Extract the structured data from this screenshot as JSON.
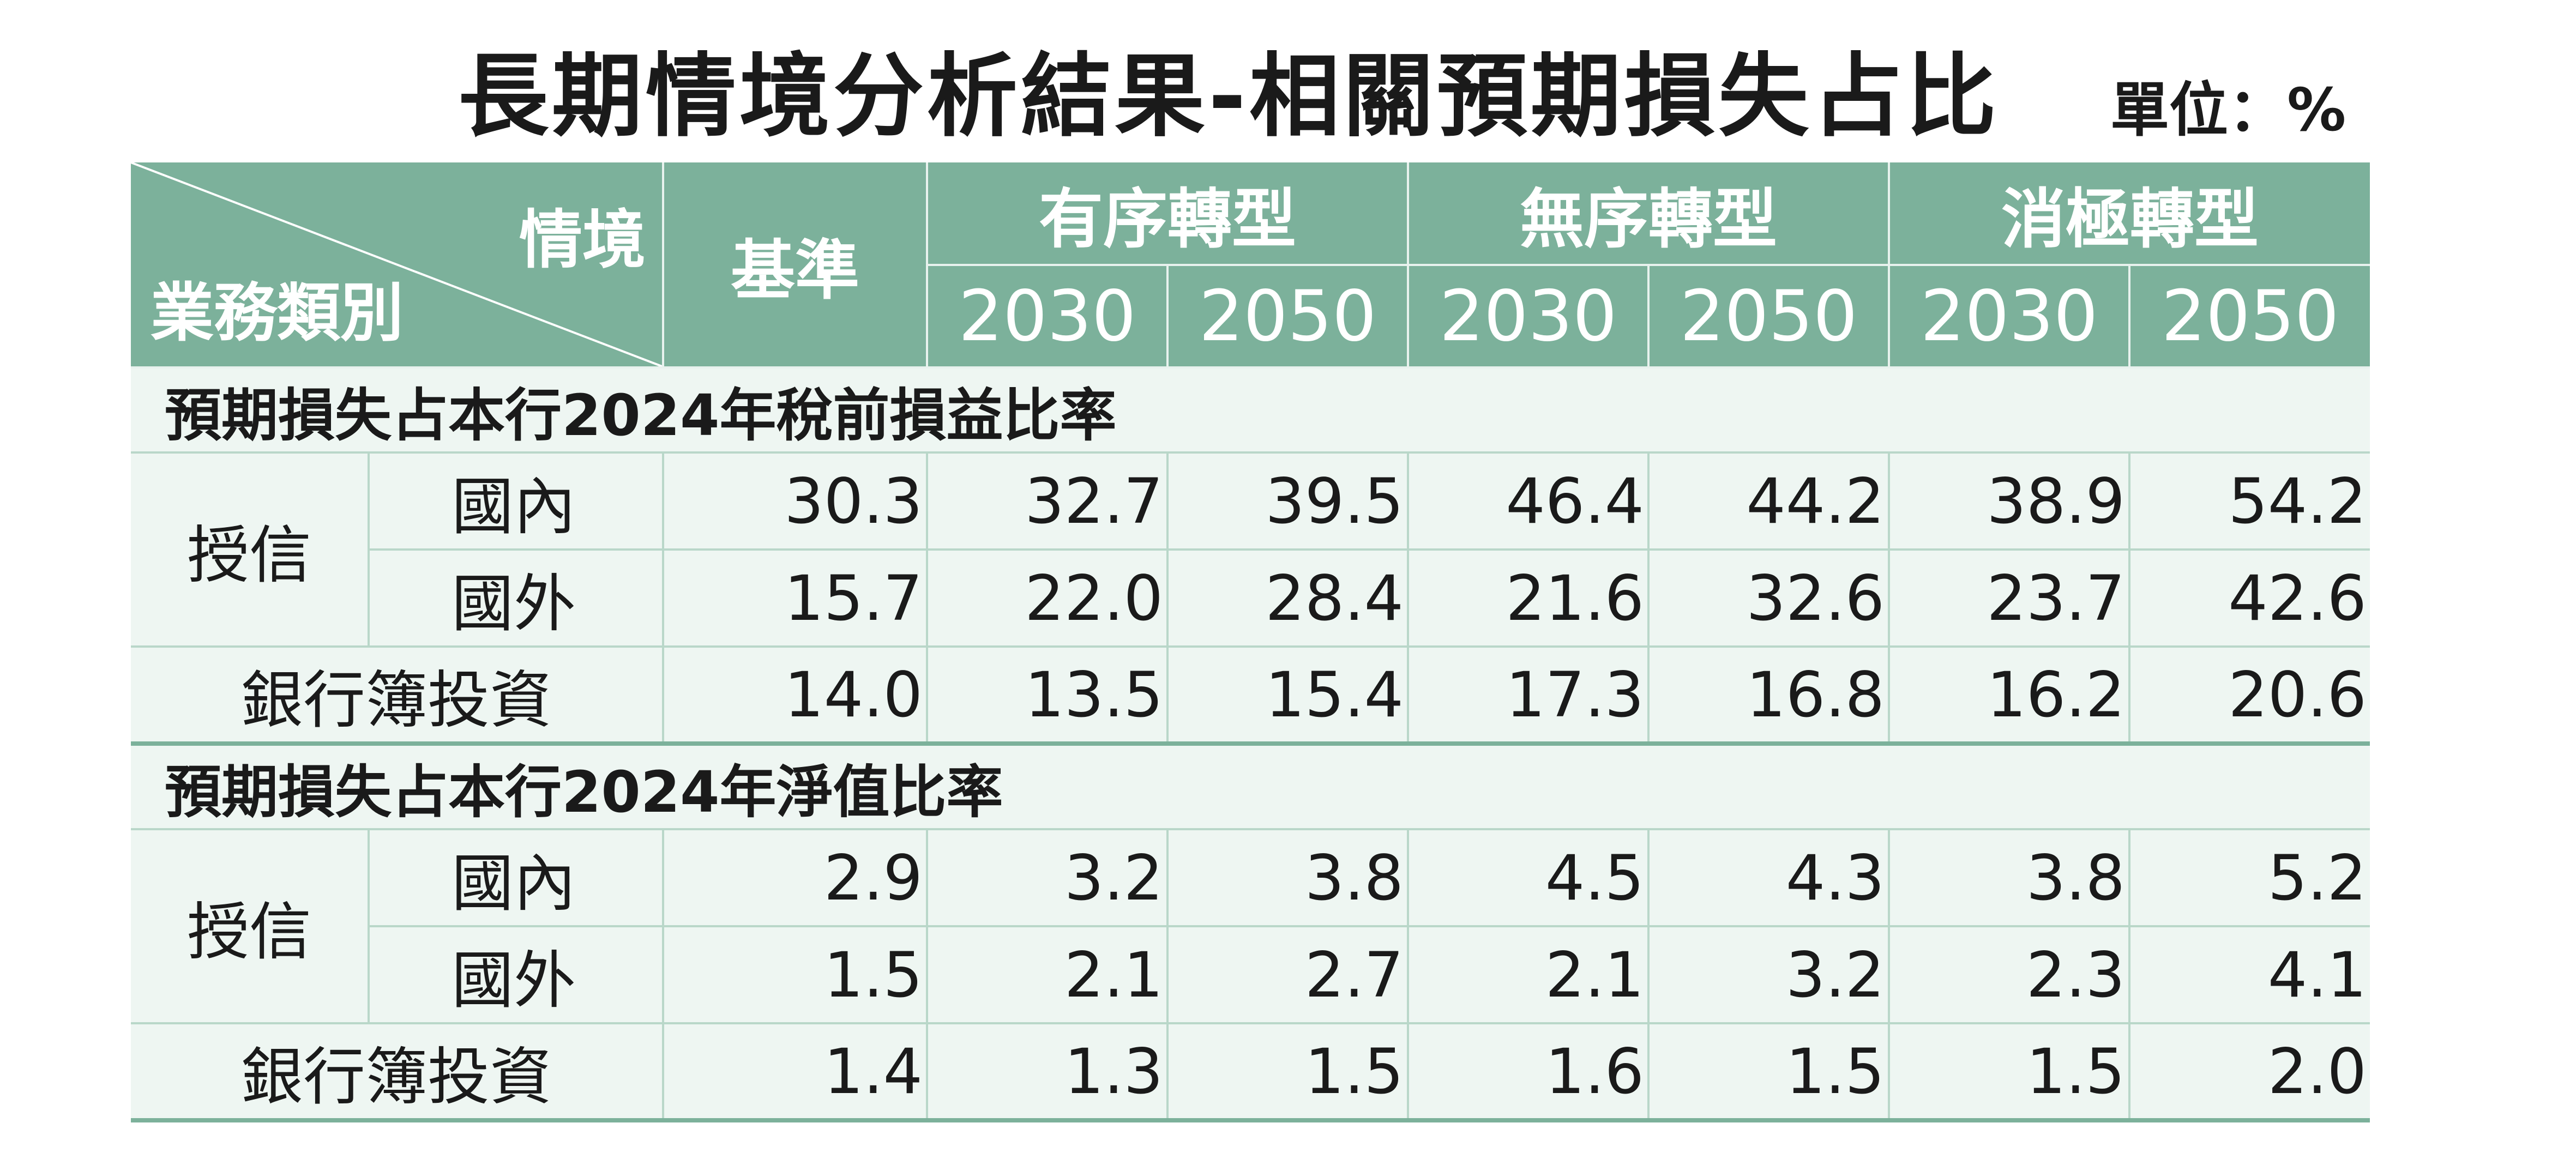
{
  "title": "長期情境分析結果-相關預期損失占比",
  "unit": "單位：%",
  "header": {
    "scenario_label": "情境",
    "business_label": "業務類別",
    "baseline": "基準",
    "scenarios": [
      "有序轉型",
      "無序轉型",
      "消極轉型"
    ],
    "years": [
      "2030",
      "2050",
      "2030",
      "2050",
      "2030",
      "2050"
    ]
  },
  "sections": [
    {
      "title": "預期損失占本行2024年稅前損益比率",
      "credit_label": "授信",
      "rows": [
        {
          "label": "國內",
          "values": [
            "30.3",
            "32.7",
            "39.5",
            "46.4",
            "44.2",
            "38.9",
            "54.2"
          ]
        },
        {
          "label": "國外",
          "values": [
            "15.7",
            "22.0",
            "28.4",
            "21.6",
            "32.6",
            "23.7",
            "42.6"
          ]
        },
        {
          "label": "銀行簿投資",
          "values": [
            "14.0",
            "13.5",
            "15.4",
            "17.3",
            "16.8",
            "16.2",
            "20.6"
          ]
        }
      ]
    },
    {
      "title": "預期損失占本行2024年淨值比率",
      "credit_label": "授信",
      "rows": [
        {
          "label": "國內",
          "values": [
            "2.9",
            "3.2",
            "3.8",
            "4.5",
            "4.3",
            "3.8",
            "5.2"
          ]
        },
        {
          "label": "國外",
          "values": [
            "1.5",
            "2.1",
            "2.7",
            "2.1",
            "3.2",
            "2.3",
            "4.1"
          ]
        },
        {
          "label": "銀行簿投資",
          "values": [
            "1.4",
            "1.3",
            "1.5",
            "1.6",
            "1.5",
            "1.5",
            "2.0"
          ]
        }
      ]
    }
  ],
  "colors": {
    "header_bg": "#7cb19b",
    "body_bg": "#eef6f2",
    "grid": "#b9d7c9"
  }
}
